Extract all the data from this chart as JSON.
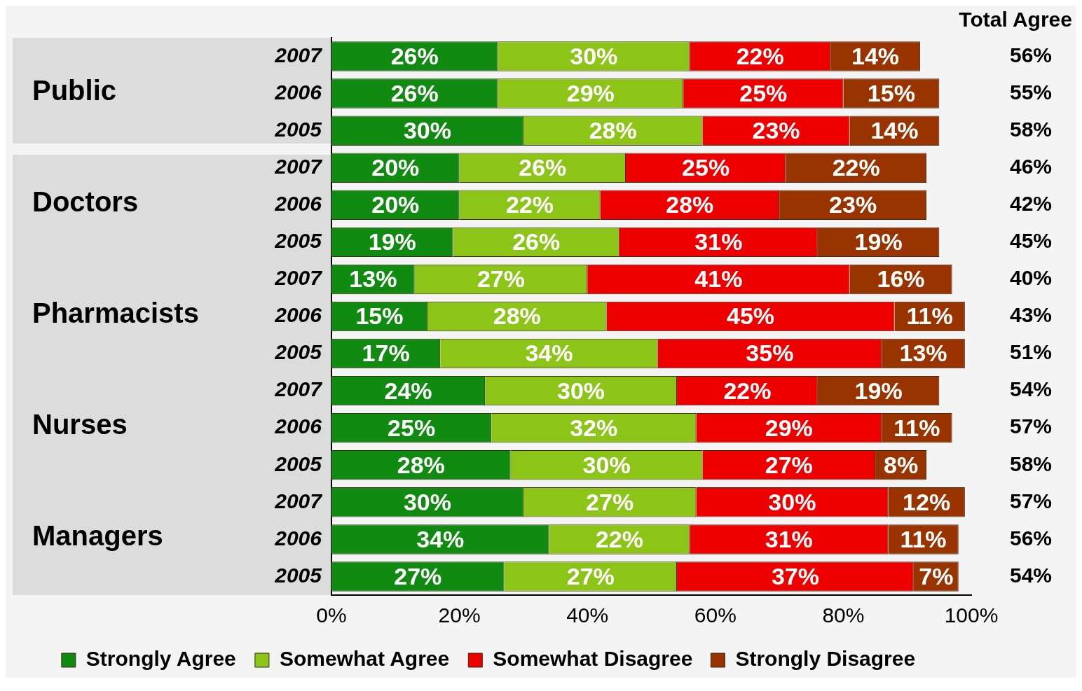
{
  "chart_data": {
    "type": "bar",
    "orientation": "horizontal",
    "stacked": true,
    "categories": [
      "2007",
      "2006",
      "2005",
      "2007",
      "2006",
      "2005",
      "2007",
      "2006",
      "2005",
      "2007",
      "2006",
      "2005",
      "2007",
      "2006",
      "2005"
    ],
    "series": [
      {
        "name": "Strongly Agree",
        "color": "#108a10",
        "values": [
          26,
          26,
          30,
          20,
          20,
          19,
          13,
          15,
          17,
          24,
          25,
          28,
          30,
          34,
          27
        ],
        "value_labels": [
          "26%",
          "26%",
          "30%",
          "20%",
          "20%",
          "19%",
          "13%",
          "15%",
          "17%",
          "24%",
          "25%",
          "28%",
          "30%",
          "34%",
          "27%"
        ]
      },
      {
        "name": "Somewhat Agree",
        "color": "#8cc418",
        "values": [
          30,
          29,
          28,
          26,
          22,
          26,
          27,
          28,
          34,
          30,
          32,
          30,
          27,
          22,
          27
        ],
        "value_labels": [
          "30%",
          "29%",
          "28%",
          "26%",
          "22%",
          "26%",
          "27%",
          "28%",
          "34%",
          "30%",
          "32%",
          "30%",
          "27%",
          "22%",
          "27%"
        ]
      },
      {
        "name": "Somewhat Disagree",
        "color": "#ee0000",
        "values": [
          22,
          25,
          23,
          25,
          28,
          31,
          41,
          45,
          35,
          22,
          29,
          27,
          30,
          31,
          37
        ],
        "value_labels": [
          "22%",
          "25%",
          "23%",
          "25%",
          "28%",
          "31%",
          "41%",
          "45%",
          "35%",
          "22%",
          "29%",
          "27%",
          "30%",
          "31%",
          "37%"
        ]
      },
      {
        "name": "Strongly Disagree",
        "color": "#993300",
        "values": [
          14,
          15,
          14,
          22,
          23,
          19,
          16,
          11,
          13,
          19,
          11,
          8,
          12,
          11,
          7
        ],
        "value_labels": [
          "14%",
          "15%",
          "14%",
          "22%",
          "23%",
          "19%",
          "16%",
          "11%",
          "13%",
          "19%",
          "11%",
          "8%",
          "12%",
          "11%",
          "7%"
        ]
      }
    ],
    "annotations": [
      "Total Agree",
      "56%",
      "55%",
      "58%",
      "46%",
      "42%",
      "45%",
      "40%",
      "43%",
      "51%",
      "54%",
      "57%",
      "58%",
      "57%",
      "56%",
      "54%",
      "Public",
      "Doctors",
      "Pharmacists",
      "Nurses",
      "Managers"
    ],
    "xlim": [
      0,
      100
    ],
    "xticks": [
      {
        "value": 0,
        "label": "0%"
      },
      {
        "value": 20,
        "label": "20%"
      },
      {
        "value": 40,
        "label": "40%"
      },
      {
        "value": 60,
        "label": "60%"
      },
      {
        "value": 80,
        "label": "80%"
      },
      {
        "value": 100,
        "label": "100%"
      }
    ],
    "grid": false,
    "legend": "bottom"
  }
}
